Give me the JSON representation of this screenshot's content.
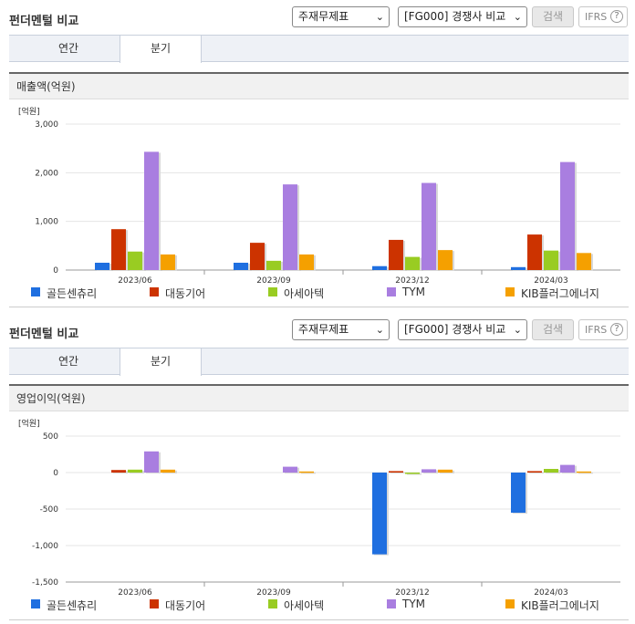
{
  "header": {
    "title": "펀더멘털 비교",
    "select1": "주재무제표",
    "select2": "[FG000] 경쟁사 비교",
    "search_label": "검색",
    "ifrs_label": "IFRS",
    "help": "?"
  },
  "tabs": [
    {
      "label": "연간",
      "active": false
    },
    {
      "label": "분기",
      "active": true
    }
  ],
  "colors": {
    "골든센츄리": "#1f6fe0",
    "대동기어": "#cc3300",
    "아세아텍": "#99cc22",
    "TYM": "#a97ee0",
    "KIB플러그에너지": "#f5a000"
  },
  "legend": [
    "골든센츄리",
    "대동기어",
    "아세아텍",
    "TYM",
    "KIB플러그에너지"
  ],
  "chart_data": [
    {
      "type": "bar",
      "title": "매출액(억원)",
      "unit": "[억원]",
      "categories": [
        "2023/06",
        "2023/09",
        "2023/12",
        "2024/03"
      ],
      "ylim": [
        0,
        3000
      ],
      "yticks": [
        0,
        1000,
        2000,
        3000
      ],
      "ytick_labels": [
        "0",
        "1,000",
        "2,000",
        "3,000"
      ],
      "series": [
        {
          "name": "골든센츄리",
          "values": [
            150,
            150,
            80,
            60
          ]
        },
        {
          "name": "대동기어",
          "values": [
            840,
            560,
            620,
            730
          ]
        },
        {
          "name": "아세아텍",
          "values": [
            380,
            190,
            270,
            400
          ]
        },
        {
          "name": "TYM",
          "values": [
            2430,
            1760,
            1790,
            2220
          ]
        },
        {
          "name": "KIB플러그에너지",
          "values": [
            320,
            320,
            410,
            350
          ]
        }
      ]
    },
    {
      "type": "bar",
      "title": "영업이익(억원)",
      "unit": "[억원]",
      "categories": [
        "2023/06",
        "2023/09",
        "2023/12",
        "2024/03"
      ],
      "ylim": [
        -1500,
        500
      ],
      "yticks": [
        -1500,
        -1000,
        -500,
        0,
        500
      ],
      "ytick_labels": [
        "-1,500",
        "-1,000",
        "-500",
        "0",
        "500"
      ],
      "series": [
        {
          "name": "골든센츄리",
          "values": [
            0,
            0,
            -1120,
            -550
          ]
        },
        {
          "name": "대동기어",
          "values": [
            35,
            0,
            20,
            20
          ]
        },
        {
          "name": "아세아텍",
          "values": [
            40,
            0,
            -15,
            50
          ]
        },
        {
          "name": "TYM",
          "values": [
            290,
            80,
            45,
            105
          ]
        },
        {
          "name": "KIB플러그에너지",
          "values": [
            40,
            15,
            40,
            15
          ]
        }
      ]
    }
  ]
}
